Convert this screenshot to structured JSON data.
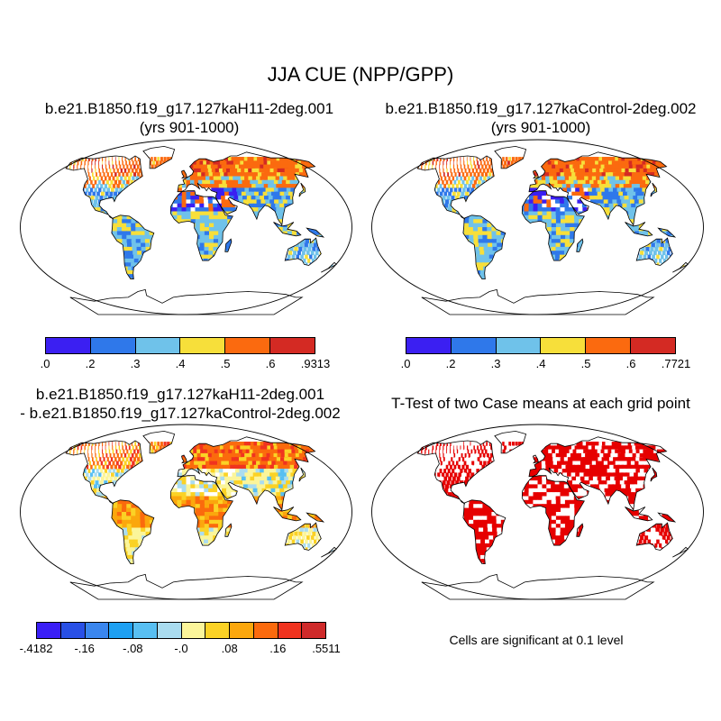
{
  "main_title": "JJA CUE (NPP/GPP)",
  "panels": [
    {
      "title_line1": "b.e21.B1850.f19_g17.127kaH11-2deg.001",
      "title_line2": "(yrs 901-1000)"
    },
    {
      "title_line1": "b.e21.B1850.f19_g17.127kaControl-2deg.002",
      "title_line2": "(yrs 901-1000)"
    },
    {
      "title_line1": "b.e21.B1850.f19_g17.127kaH11-2deg.001",
      "title_line2": "- b.e21.B1850.f19_g17.127kaControl-2deg.002"
    },
    {
      "title_line1": "T-Test of two Case means at each grid point",
      "title_line2": ""
    }
  ],
  "colorbars": {
    "cb1": {
      "colors": [
        "#3b1ff2",
        "#2f78ea",
        "#6fc2ea",
        "#f7df3a",
        "#fb6a0f",
        "#d42a23"
      ],
      "ticks": [
        ".0",
        ".2",
        ".3",
        ".4",
        ".5",
        ".6",
        ".9313"
      ]
    },
    "cb2": {
      "colors": [
        "#3b1ff2",
        "#2f78ea",
        "#6fc2ea",
        "#f7df3a",
        "#fb6a0f",
        "#d42a23"
      ],
      "ticks": [
        ".0",
        ".2",
        ".3",
        ".4",
        ".5",
        ".6",
        ".7721"
      ]
    },
    "cb3": {
      "colors": [
        "#3a1ff6",
        "#2950e6",
        "#3a86ee",
        "#1ea0f2",
        "#58bff2",
        "#aadcef",
        "#fbf59a",
        "#fbd225",
        "#fba70d",
        "#fb6a0d",
        "#f0331f",
        "#cf2a2a"
      ],
      "ticks": [
        "-.4182",
        "-.16",
        "-.08",
        "-.0",
        ".08",
        ".16",
        ".5511"
      ]
    }
  },
  "significance_note": "Cells are significant at 0.1 level",
  "colors": {
    "ocean": "#ffffff",
    "coast": "#000000",
    "significant": "#e60000"
  }
}
